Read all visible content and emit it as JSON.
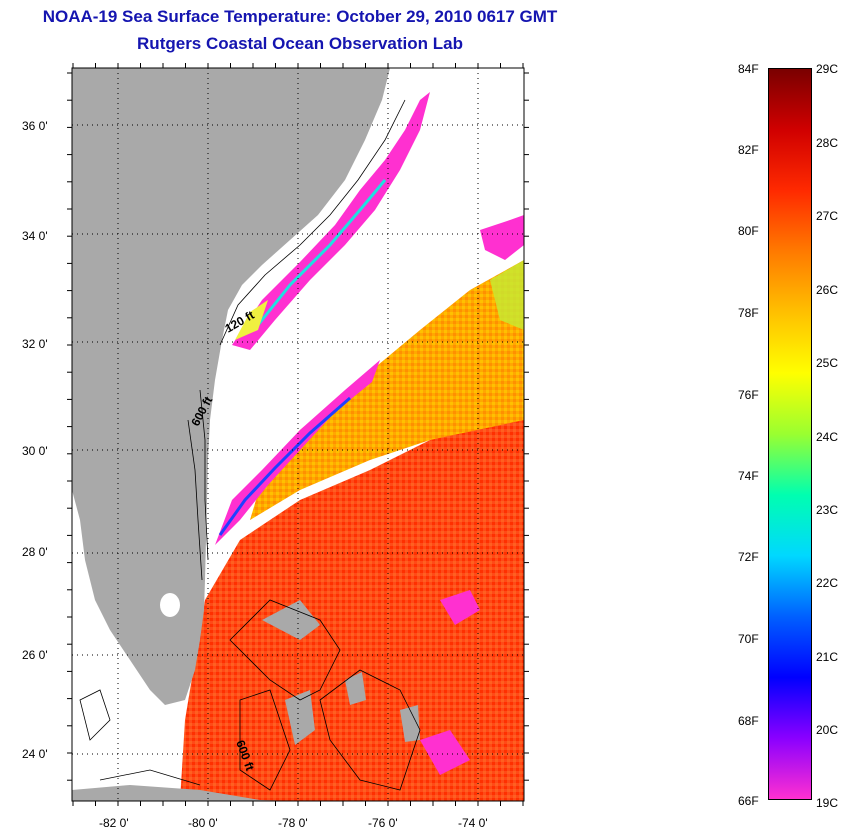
{
  "title": {
    "line1": "NOAA-19 Sea Surface Temperature:  October 29, 2010 0617 GMT",
    "line2": "Rutgers Coastal Ocean Observation Lab"
  },
  "map": {
    "lat_labels": [
      "36 0'",
      "34 0'",
      "32 0'",
      "30 0'",
      "28 0'",
      "26 0'",
      "24 0'"
    ],
    "lon_labels": [
      "-82 0'",
      "-80 0'",
      "-78 0'",
      "-76 0'",
      "-74 0'"
    ],
    "contour_labels": [
      "120 ft",
      "600 ft",
      "600 ft"
    ],
    "colors": {
      "land": "#a9a9a9",
      "no_data": "#ffffff",
      "warm": "#ff3a10",
      "mid": "#ffb000",
      "cool": "#ff40d0"
    }
  },
  "colorbar": {
    "fahrenheit": [
      "84F",
      "82F",
      "80F",
      "78F",
      "76F",
      "74F",
      "72F",
      "70F",
      "68F",
      "66F"
    ],
    "celsius": [
      "29C",
      "28C",
      "27C",
      "26C",
      "25C",
      "24C",
      "23C",
      "22C",
      "21C",
      "20C",
      "19C"
    ],
    "gradient": [
      "#7a0000",
      "#d00000",
      "#ff2a00",
      "#ff7a00",
      "#ffc000",
      "#ffff00",
      "#9aff30",
      "#00ffb0",
      "#00d8ff",
      "#0060ff",
      "#0000ff",
      "#8a00ff",
      "#ff30d0"
    ]
  }
}
